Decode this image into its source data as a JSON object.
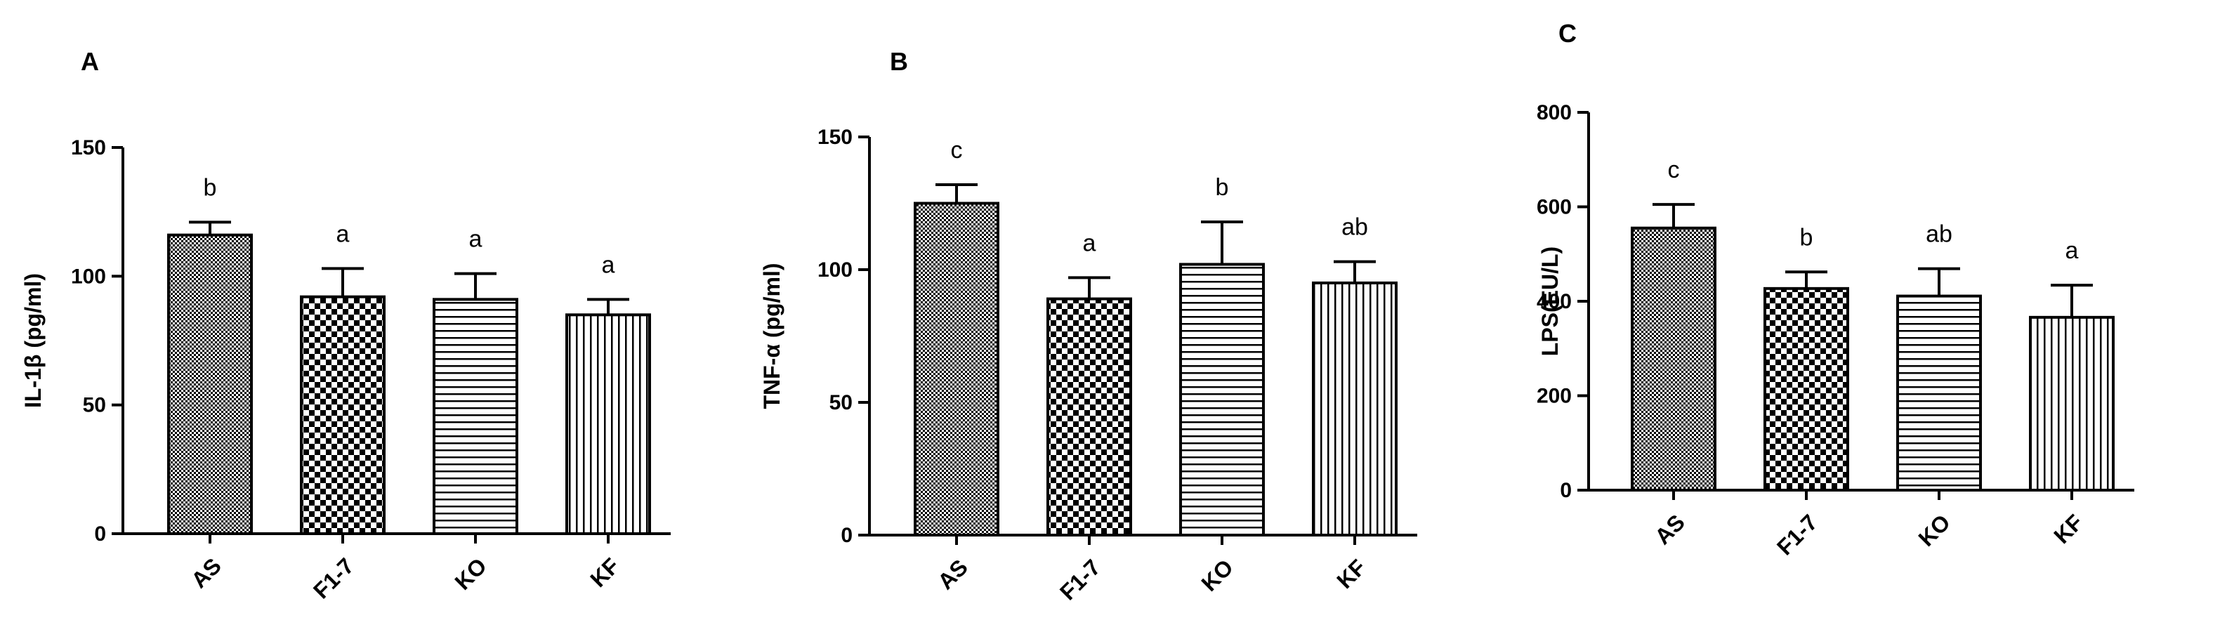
{
  "chart_data": [
    {
      "type": "bar",
      "panel": "A",
      "categories": [
        "AS",
        "F1-7",
        "KO",
        "KF"
      ],
      "values": [
        116,
        92,
        91,
        85
      ],
      "errors": [
        5,
        11,
        10,
        6
      ],
      "significance": [
        "b",
        "a",
        "a",
        "a"
      ],
      "patterns": [
        "fine-check",
        "large-check",
        "horizontal-lines",
        "vertical-lines"
      ],
      "xlabel": "",
      "ylabel": "IL-1β (pg/ml)",
      "ylim": [
        0,
        150
      ],
      "yticks": [
        0,
        50,
        100,
        150
      ],
      "grid": false
    },
    {
      "type": "bar",
      "panel": "B",
      "categories": [
        "AS",
        "F1-7",
        "KO",
        "KF"
      ],
      "values": [
        125,
        89,
        102,
        95
      ],
      "errors": [
        7,
        8,
        16,
        8
      ],
      "significance": [
        "c",
        "a",
        "b",
        "ab"
      ],
      "patterns": [
        "fine-check",
        "large-check",
        "horizontal-lines",
        "vertical-lines"
      ],
      "xlabel": "",
      "ylabel": "TNF-α (pg/ml)",
      "ylim": [
        0,
        150
      ],
      "yticks": [
        0,
        50,
        100,
        150
      ],
      "grid": false
    },
    {
      "type": "bar",
      "panel": "C",
      "categories": [
        "AS",
        "F1-7",
        "KO",
        "KF"
      ],
      "values": [
        555,
        427,
        411,
        366
      ],
      "errors": [
        50,
        35,
        58,
        68
      ],
      "significance": [
        "c",
        "b",
        "ab",
        "a"
      ],
      "patterns": [
        "fine-check",
        "large-check",
        "horizontal-lines",
        "vertical-lines"
      ],
      "xlabel": "",
      "ylabel": "LPS(EU/L)",
      "ylim": [
        0,
        800
      ],
      "yticks": [
        0,
        200,
        400,
        600,
        800
      ],
      "grid": false
    }
  ]
}
